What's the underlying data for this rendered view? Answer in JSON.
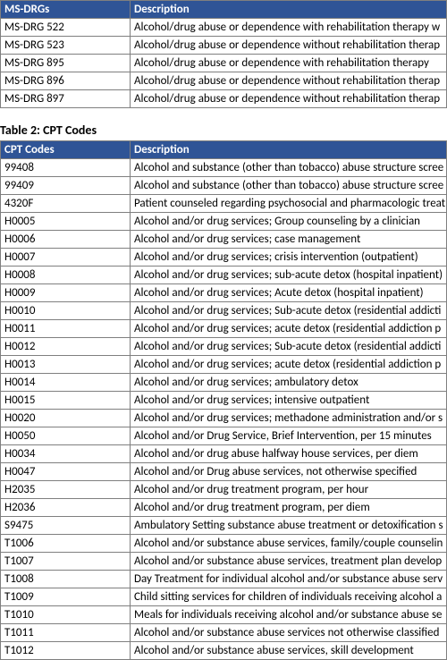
{
  "table1": {
    "headers": {
      "code": "MS-DRGs",
      "desc": "Description"
    },
    "rows": [
      {
        "code": "MS-DRG 522",
        "desc": "Alcohol/drug abuse or dependence with rehabilitation therapy w"
      },
      {
        "code": "MS-DRG 523",
        "desc": "Alcohol/drug abuse or dependence without rehabilitation therap"
      },
      {
        "code": "MS-DRG 895",
        "desc": "Alcohol/drug abuse or dependence with rehabilitation therapy"
      },
      {
        "code": "MS-DRG 896",
        "desc": "Alcohol/drug abuse or dependence without rehabilitation therap"
      },
      {
        "code": "MS-DRG 897",
        "desc": "Alcohol/drug abuse or dependence without rehabilitation therap"
      }
    ]
  },
  "table2": {
    "title": "Table 2: CPT Codes",
    "headers": {
      "code": "CPT Codes",
      "desc": "Description"
    },
    "rows": [
      {
        "code": "99408",
        "desc": "Alcohol and substance (other than tobacco) abuse structure scree"
      },
      {
        "code": "99409",
        "desc": "Alcohol and substance (other than tobacco) abuse structure scree"
      },
      {
        "code": "4320F",
        "desc": "Patient counseled regarding psychosocial and pharmacologic treat"
      },
      {
        "code": "H0005",
        "desc": "Alcohol and/or drug services; Group counseling by a clinician"
      },
      {
        "code": "H0006",
        "desc": "Alcohol and/or drug services; case management"
      },
      {
        "code": "H0007",
        "desc": "Alcohol and/or drug services; crisis intervention (outpatient)"
      },
      {
        "code": "H0008",
        "desc": "Alcohol and/or drug services; sub-acute detox (hospital inpatient)"
      },
      {
        "code": "H0009",
        "desc": "Alcohol and/or drug services; Acute detox (hospital inpatient)"
      },
      {
        "code": "H0010",
        "desc": "Alcohol and/or drug services; Sub-acute detox (residential addicti"
      },
      {
        "code": "H0011",
        "desc": "Alcohol and/or drug services; acute detox (residential addiction p"
      },
      {
        "code": "H0012",
        "desc": "Alcohol and/or drug services; Sub-acute detox (residential addicti"
      },
      {
        "code": "H0013",
        "desc": "Alcohol and/or drug services; acute detox (residential addiction p"
      },
      {
        "code": "H0014",
        "desc": "Alcohol and/or drug services; ambulatory detox"
      },
      {
        "code": "H0015",
        "desc": "Alcohol and/or drug services; intensive outpatient"
      },
      {
        "code": "H0020",
        "desc": "Alcohol and/or drug services; methadone administration and/or s"
      },
      {
        "code": "H0050",
        "desc": "Alcohol and/or Drug Service, Brief Intervention, per 15 minutes"
      },
      {
        "code": "H0034",
        "desc": "Alcohol and/or drug abuse halfway house services, per diem"
      },
      {
        "code": "H0047",
        "desc": "Alcohol and/or Drug abuse services, not otherwise specified"
      },
      {
        "code": "H2035",
        "desc": "Alcohol and/or drug treatment program, per hour"
      },
      {
        "code": "H2036",
        "desc": "Alcohol and/or drug treatment program, per diem"
      },
      {
        "code": "S9475",
        "desc": "Ambulatory Setting substance abuse treatment or detoxification s"
      },
      {
        "code": "T1006",
        "desc": "Alcohol and/or substance abuse services, family/couple counselin"
      },
      {
        "code": "T1007",
        "desc": "Alcohol and/or substance abuse services, treatment plan develop"
      },
      {
        "code": "T1008",
        "desc": "Day Treatment for individual alcohol and/or substance abuse serv"
      },
      {
        "code": "T1009",
        "desc": "Child sitting services for children of individuals receiving alcohol a"
      },
      {
        "code": "T1010",
        "desc": "Meals for individuals receiving alcohol and/or substance abuse se"
      },
      {
        "code": "T1011",
        "desc": "Alcohol and/or substance abuse services not otherwise classified"
      },
      {
        "code": "T1012",
        "desc": "Alcohol and/or substance abuse services, skill development"
      }
    ]
  },
  "colors": {
    "header_bg": "#2f5496",
    "header_fg": "#ffffff",
    "border": "#7f7f7f",
    "text": "#000000",
    "bg": "#ffffff"
  }
}
